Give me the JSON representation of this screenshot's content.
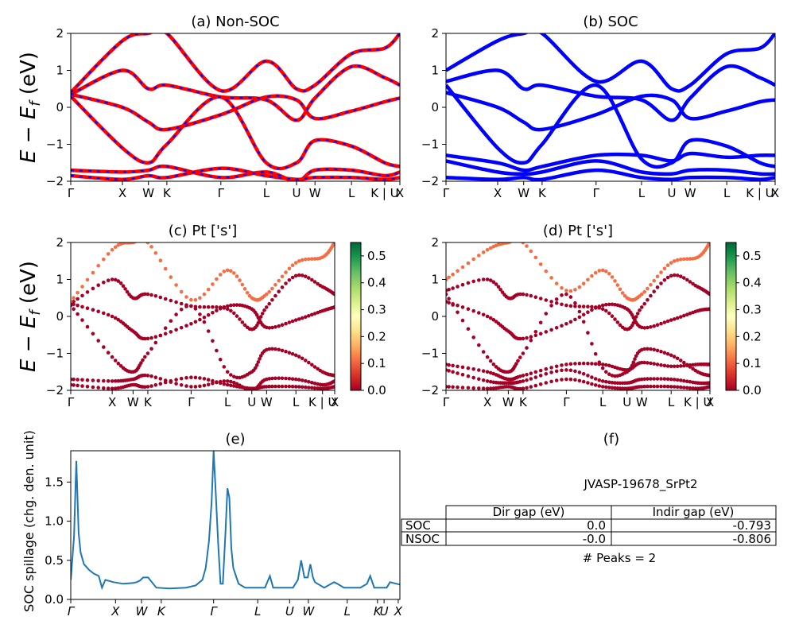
{
  "figure_id": "JVASP-19678_SrPt2",
  "colors": {
    "nonsoc_line": "#ff0000",
    "nonsoc_dash": "#0000ff",
    "soc_line": "#0000ff",
    "spillage_line": "#1f77b4",
    "cmap": [
      "#a50026",
      "#d73027",
      "#f46d43",
      "#fdae61",
      "#fee08b",
      "#ffffbf",
      "#d9ef8b",
      "#a6d96a",
      "#66bd63",
      "#1a9850",
      "#006837"
    ]
  },
  "chart_data": [
    {
      "id": "a",
      "type": "line",
      "title": "(a) Non-SOC",
      "ylabel": "E − E_f (eV)",
      "ylim": [
        -2,
        2
      ],
      "yticks": [
        "−2",
        "−1",
        "0",
        "1",
        "2"
      ],
      "kpath": [
        "Γ",
        "X",
        "W",
        "K",
        "Γ",
        "L",
        "U",
        "W",
        "L",
        "K | U",
        "X"
      ],
      "kpath_pos": [
        0,
        0.157,
        0.236,
        0.292,
        0.456,
        0.594,
        0.686,
        0.742,
        0.853,
        0.954,
        1.0
      ],
      "series": [
        {
          "values": [
            0.35,
            0.0,
            -0.4,
            -0.6,
            -0.2,
            0.28,
            0.2,
            -0.3,
            -0.1,
            0.15,
            0.25
          ]
        },
        {
          "values": [
            0.35,
            1.0,
            0.5,
            0.6,
            0.28,
            0.2,
            -0.35,
            0.25,
            1.1,
            0.8,
            0.6
          ]
        },
        {
          "values": [
            0.3,
            -1.1,
            -1.5,
            -1.0,
            0.28,
            -1.5,
            -1.5,
            -0.9,
            -1.05,
            -1.5,
            -1.6
          ]
        },
        {
          "values": [
            0.4,
            1.8,
            2.0,
            2.0,
            0.45,
            1.25,
            0.5,
            0.6,
            1.45,
            1.6,
            2.0
          ]
        },
        {
          "values": [
            -1.7,
            -1.75,
            -1.7,
            -1.6,
            -1.9,
            -1.75,
            -2.0,
            -1.7,
            -1.7,
            -1.85,
            -1.75
          ]
        },
        {
          "values": [
            -1.85,
            -1.95,
            -1.85,
            -1.9,
            -1.65,
            -1.85,
            -1.95,
            -1.9,
            -1.9,
            -1.95,
            -1.9
          ]
        }
      ]
    },
    {
      "id": "b",
      "type": "line",
      "title": "(b) SOC",
      "ylim": [
        -2,
        2
      ],
      "yticks": [
        "−2",
        "−1",
        "0",
        "1",
        "2"
      ],
      "kpath": [
        "Γ",
        "X",
        "W",
        "K",
        "Γ",
        "L",
        "U",
        "W",
        "L",
        "K | U",
        "X"
      ],
      "kpath_pos": [
        0,
        0.157,
        0.236,
        0.292,
        0.456,
        0.594,
        0.686,
        0.742,
        0.853,
        0.954,
        1.0
      ],
      "series": [
        {
          "values": [
            0.4,
            0.0,
            -0.4,
            -0.6,
            -0.2,
            0.3,
            0.2,
            -0.3,
            -0.1,
            0.15,
            0.2
          ]
        },
        {
          "values": [
            0.7,
            1.0,
            0.5,
            0.6,
            0.3,
            0.2,
            -0.35,
            0.25,
            1.1,
            0.8,
            0.6
          ]
        },
        {
          "values": [
            0.6,
            -1.1,
            -1.5,
            -1.0,
            0.6,
            -1.4,
            -1.5,
            -0.9,
            -1.05,
            -1.5,
            -1.6
          ]
        },
        {
          "values": [
            1.0,
            1.8,
            2.0,
            2.0,
            0.7,
            1.25,
            0.5,
            0.6,
            1.45,
            1.6,
            2.0
          ]
        },
        {
          "values": [
            -1.3,
            -1.5,
            -1.7,
            -1.6,
            -1.3,
            -1.3,
            -1.45,
            -1.25,
            -1.35,
            -1.3,
            -1.3
          ]
        },
        {
          "values": [
            -1.45,
            -1.75,
            -1.8,
            -1.75,
            -1.45,
            -1.75,
            -1.8,
            -1.7,
            -1.7,
            -1.8,
            -1.8
          ]
        },
        {
          "values": [
            -1.9,
            -1.95,
            -1.9,
            -1.95,
            -1.7,
            -1.9,
            -1.95,
            -1.9,
            -1.9,
            -1.95,
            -1.9
          ]
        }
      ]
    },
    {
      "id": "c",
      "type": "scatter",
      "title": "(c)  Pt ['s']",
      "ylabel": "E − E_f (eV)",
      "ylim": [
        -2,
        2
      ],
      "yticks": [
        "−2",
        "−1",
        "0",
        "1",
        "2"
      ],
      "colorbar_ticks": [
        "0.0",
        "0.1",
        "0.2",
        "0.3",
        "0.4",
        "0.5"
      ],
      "colorbar_range": [
        0,
        0.55
      ],
      "kpath": [
        "Γ",
        "X",
        "W",
        "K",
        "Γ",
        "L",
        "U",
        "W",
        "L",
        "K | U",
        "X"
      ],
      "kpath_pos": [
        0,
        0.157,
        0.236,
        0.292,
        0.456,
        0.594,
        0.686,
        0.742,
        0.853,
        0.954,
        1.0
      ],
      "series": [
        {
          "values": [
            0.35,
            0.0,
            -0.4,
            -0.6,
            -0.2,
            0.28,
            0.2,
            -0.3,
            -0.1,
            0.15,
            0.25
          ],
          "weight": 0.05
        },
        {
          "values": [
            0.35,
            1.0,
            0.5,
            0.6,
            0.28,
            0.2,
            -0.35,
            0.25,
            1.1,
            0.8,
            0.6
          ],
          "weight": 0.03
        },
        {
          "values": [
            0.3,
            -1.1,
            -1.5,
            -1.0,
            0.28,
            -1.5,
            -1.5,
            -0.9,
            -1.05,
            -1.5,
            -1.6
          ],
          "weight": 0.02
        },
        {
          "values": [
            0.4,
            1.8,
            2.0,
            2.0,
            0.45,
            1.25,
            0.5,
            0.6,
            1.45,
            1.6,
            2.0
          ],
          "weight": 0.12
        },
        {
          "values": [
            -1.7,
            -1.75,
            -1.7,
            -1.6,
            -1.9,
            -1.75,
            -2.0,
            -1.7,
            -1.7,
            -1.85,
            -1.75
          ],
          "weight": 0.02
        },
        {
          "values": [
            -1.85,
            -1.95,
            -1.85,
            -1.9,
            -1.65,
            -1.85,
            -1.95,
            -1.9,
            -1.9,
            -1.95,
            -1.9
          ],
          "weight": 0.04
        }
      ]
    },
    {
      "id": "d",
      "type": "scatter",
      "title": "(d) Pt ['s']",
      "ylim": [
        -2,
        2
      ],
      "yticks": [
        "−2",
        "−1",
        "0",
        "1",
        "2"
      ],
      "colorbar_ticks": [
        "0.0",
        "0.1",
        "0.2",
        "0.3",
        "0.4",
        "0.5"
      ],
      "colorbar_range": [
        0,
        0.55
      ],
      "kpath": [
        "Γ",
        "X",
        "W",
        "K",
        "Γ",
        "L",
        "U",
        "W",
        "L",
        "K | U",
        "X"
      ],
      "kpath_pos": [
        0,
        0.157,
        0.236,
        0.292,
        0.456,
        0.594,
        0.686,
        0.742,
        0.853,
        0.954,
        1.0
      ],
      "series": [
        {
          "values": [
            0.4,
            0.0,
            -0.4,
            -0.6,
            -0.2,
            0.3,
            0.2,
            -0.3,
            -0.1,
            0.15,
            0.2
          ],
          "weight": 0.05
        },
        {
          "values": [
            0.7,
            1.0,
            0.5,
            0.6,
            0.3,
            0.2,
            -0.35,
            0.25,
            1.1,
            0.8,
            0.6
          ],
          "weight": 0.03
        },
        {
          "values": [
            0.6,
            -1.1,
            -1.5,
            -1.0,
            0.6,
            -1.4,
            -1.5,
            -0.9,
            -1.05,
            -1.5,
            -1.6
          ],
          "weight": 0.02
        },
        {
          "values": [
            1.0,
            1.8,
            2.0,
            2.0,
            0.7,
            1.25,
            0.5,
            0.6,
            1.45,
            1.6,
            2.0
          ],
          "weight": 0.12
        },
        {
          "values": [
            -1.3,
            -1.5,
            -1.7,
            -1.6,
            -1.3,
            -1.3,
            -1.45,
            -1.25,
            -1.35,
            -1.3,
            -1.3
          ],
          "weight": 0.02
        },
        {
          "values": [
            -1.45,
            -1.75,
            -1.8,
            -1.75,
            -1.45,
            -1.75,
            -1.8,
            -1.7,
            -1.7,
            -1.8,
            -1.8
          ],
          "weight": 0.02
        },
        {
          "values": [
            -1.9,
            -1.95,
            -1.9,
            -1.95,
            -1.7,
            -1.9,
            -1.95,
            -1.9,
            -1.9,
            -1.95,
            -1.9
          ],
          "weight": 0.04
        }
      ]
    },
    {
      "id": "e",
      "type": "line",
      "title": "(e)",
      "ylabel": "SOC spillage (chg. den. unit)",
      "ylim": [
        0,
        1.9
      ],
      "yticks": [
        "0.0",
        "0.5",
        "1.0",
        "1.5"
      ],
      "ytick_values": [
        0,
        0.5,
        1.0,
        1.5
      ],
      "xlim": [
        0,
        1
      ],
      "kpath": [
        "Γ",
        "X",
        "W",
        "K",
        "Γ",
        "L",
        "U",
        "W",
        "L",
        "K",
        "U",
        "X"
      ],
      "kpath_pos": [
        0,
        0.136,
        0.215,
        0.275,
        0.434,
        0.568,
        0.665,
        0.722,
        0.84,
        0.932,
        0.952,
        0.995
      ],
      "x": [
        0,
        0.01,
        0.017,
        0.024,
        0.03,
        0.04,
        0.055,
        0.07,
        0.085,
        0.095,
        0.105,
        0.13,
        0.16,
        0.19,
        0.2,
        0.21,
        0.22,
        0.235,
        0.26,
        0.3,
        0.35,
        0.38,
        0.4,
        0.41,
        0.42,
        0.428,
        0.434,
        0.44,
        0.448,
        0.455,
        0.462,
        0.47,
        0.476,
        0.482,
        0.488,
        0.494,
        0.502,
        0.51,
        0.53,
        0.55,
        0.57,
        0.59,
        0.605,
        0.615,
        0.64,
        0.66,
        0.675,
        0.69,
        0.7,
        0.71,
        0.72,
        0.728,
        0.736,
        0.742,
        0.75,
        0.77,
        0.8,
        0.81,
        0.83,
        0.84,
        0.86,
        0.88,
        0.9,
        0.91,
        0.922,
        0.94,
        0.95,
        0.96,
        0.97,
        0.99,
        1.0
      ],
      "values": [
        0.25,
        0.8,
        1.77,
        0.85,
        0.6,
        0.45,
        0.38,
        0.33,
        0.3,
        0.15,
        0.25,
        0.22,
        0.2,
        0.21,
        0.22,
        0.24,
        0.28,
        0.28,
        0.15,
        0.14,
        0.15,
        0.18,
        0.25,
        0.4,
        0.75,
        1.25,
        1.9,
        1.4,
        0.7,
        0.2,
        0.2,
        0.85,
        1.42,
        1.3,
        0.65,
        0.4,
        0.3,
        0.2,
        0.15,
        0.15,
        0.15,
        0.15,
        0.3,
        0.15,
        0.15,
        0.15,
        0.15,
        0.25,
        0.5,
        0.28,
        0.28,
        0.45,
        0.28,
        0.22,
        0.2,
        0.15,
        0.22,
        0.2,
        0.15,
        0.15,
        0.15,
        0.15,
        0.2,
        0.3,
        0.15,
        0.15,
        0.15,
        0.15,
        0.22,
        0.2,
        0.19
      ]
    }
  ],
  "panel_f": {
    "title": "(f)",
    "material": "JVASP-19678_SrPt2",
    "columns": [
      "Dir gap (eV)",
      "Indir gap (eV)"
    ],
    "rows": [
      {
        "label": "SOC",
        "dir": "0.0",
        "indir": "-0.793"
      },
      {
        "label": "NSOC",
        "dir": "-0.0",
        "indir": "-0.806"
      }
    ],
    "peaks": "# Peaks = 2"
  }
}
